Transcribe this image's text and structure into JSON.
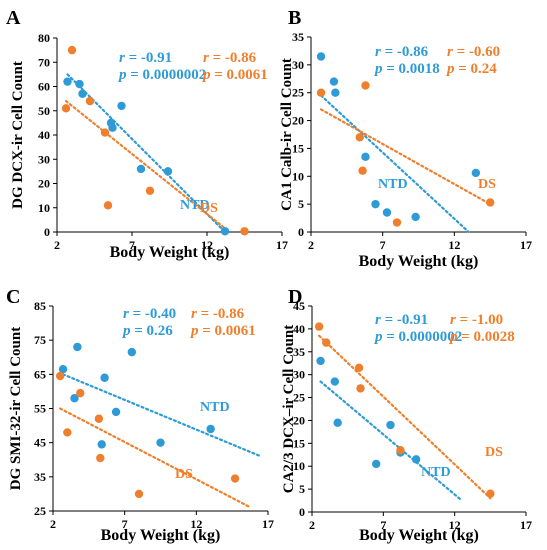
{
  "colors": {
    "ntd": "#2e9bd6",
    "ds": "#f07f2d",
    "axis": "#000000"
  },
  "chart_data": [
    {
      "panel": "A",
      "type": "scatter",
      "xlabel": "Body Weight (kg)",
      "ylabel": "DG DCX-ir Cell Count",
      "xlim": [
        2,
        17
      ],
      "ylim": [
        0,
        80
      ],
      "xticks": [
        2,
        7,
        12,
        17
      ],
      "yticks": [
        0,
        10,
        20,
        30,
        40,
        50,
        60,
        70,
        80
      ],
      "stats": {
        "ntd": {
          "r_label": "r",
          "r_value": " = -0.91",
          "p_label": "p",
          "p_value": " = 0.0000002"
        },
        "ds": {
          "r_label": "r",
          "r_value": " = -0.86",
          "p_label": "p",
          "p_value": " = 0.0061"
        }
      },
      "series": [
        {
          "name": "NTD",
          "color": "#2e9bd6",
          "points": [
            [
              2.7,
              62
            ],
            [
              3.5,
              61
            ],
            [
              3.7,
              57
            ],
            [
              4.2,
              54
            ],
            [
              5.6,
              45
            ],
            [
              5.7,
              43
            ],
            [
              6.3,
              52
            ],
            [
              7.6,
              26
            ],
            [
              9.4,
              25
            ],
            [
              13.2,
              0.3
            ]
          ],
          "trend": [
            [
              2.7,
              65
            ],
            [
              13.2,
              0
            ]
          ]
        },
        {
          "name": "DS",
          "color": "#f07f2d",
          "points": [
            [
              2.6,
              51
            ],
            [
              3.0,
              75
            ],
            [
              4.2,
              54
            ],
            [
              5.2,
              41
            ],
            [
              5.4,
              11
            ],
            [
              8.2,
              17
            ],
            [
              14.5,
              0.3
            ]
          ],
          "trend": [
            [
              2.6,
              54
            ],
            [
              13.5,
              0
            ]
          ]
        }
      ]
    },
    {
      "panel": "B",
      "type": "scatter",
      "xlabel": "Body Weight (kg)",
      "ylabel": "CA1 Calb-ir Cell Count",
      "xlim": [
        2,
        17
      ],
      "ylim": [
        0,
        35
      ],
      "xticks": [
        2,
        7,
        12,
        17
      ],
      "yticks": [
        0,
        5,
        10,
        15,
        20,
        25,
        30,
        35
      ],
      "stats": {
        "ntd": {
          "r_label": "r",
          "r_value": " = -0.86",
          "p_label": "p",
          "p_value": " = 0.0018"
        },
        "ds": {
          "r_label": "r",
          "r_value": " = -0.60",
          "p_label": "p",
          "p_value": " = 0.24"
        }
      },
      "series": [
        {
          "name": "NTD",
          "color": "#2e9bd6",
          "points": [
            [
              2.7,
              31.5
            ],
            [
              3.6,
              27
            ],
            [
              3.7,
              25
            ],
            [
              5.8,
              13.5
            ],
            [
              6.5,
              5
            ],
            [
              7.3,
              3.5
            ],
            [
              9.3,
              2.7
            ],
            [
              13.5,
              10.6
            ]
          ],
          "trend": [
            [
              2.7,
              24.5
            ],
            [
              13,
              0
            ]
          ]
        },
        {
          "name": "DS",
          "color": "#f07f2d",
          "points": [
            [
              2.7,
              25
            ],
            [
              5.4,
              17
            ],
            [
              5.6,
              11
            ],
            [
              5.8,
              26.3
            ],
            [
              8.0,
              1.7
            ],
            [
              14.5,
              5.3
            ]
          ],
          "trend": [
            [
              2.7,
              22
            ],
            [
              14.5,
              5
            ]
          ]
        }
      ]
    },
    {
      "panel": "C",
      "type": "scatter",
      "xlabel": "Body Weight (kg)",
      "ylabel": "DG SMI-32-ir Cell Count",
      "xlim": [
        2,
        17
      ],
      "ylim": [
        25,
        85
      ],
      "xticks": [
        2,
        7,
        12,
        17
      ],
      "yticks": [
        25,
        35,
        45,
        55,
        65,
        75,
        85
      ],
      "stats": {
        "ntd": {
          "r_label": "r",
          "r_value": " = -0.40",
          "p_label": "p",
          "p_value": " = 0.26"
        },
        "ds": {
          "r_label": "r",
          "r_value": " = -0.86",
          "p_label": "p",
          "p_value": " = 0.0061"
        }
      },
      "series": [
        {
          "name": "NTD",
          "color": "#2e9bd6",
          "points": [
            [
              2.7,
              66.5
            ],
            [
              3.5,
              58
            ],
            [
              3.7,
              73
            ],
            [
              5.4,
              44.5
            ],
            [
              5.6,
              64
            ],
            [
              6.4,
              54
            ],
            [
              7.5,
              71.5
            ],
            [
              9.5,
              45
            ],
            [
              13.0,
              49
            ]
          ],
          "trend": [
            [
              2.7,
              65
            ],
            [
              16.5,
              41
            ]
          ]
        },
        {
          "name": "DS",
          "color": "#f07f2d",
          "points": [
            [
              2.5,
              64.5
            ],
            [
              3.0,
              48
            ],
            [
              3.9,
              59.5
            ],
            [
              5.2,
              52
            ],
            [
              5.3,
              40.5
            ],
            [
              8.0,
              30
            ],
            [
              14.7,
              34.5
            ]
          ],
          "trend": [
            [
              2.5,
              55
            ],
            [
              15.8,
              26
            ]
          ]
        }
      ]
    },
    {
      "panel": "D",
      "type": "scatter",
      "xlabel": "Body Weight (kg)",
      "ylabel": "CA2/3 DCX–ir Cell Count",
      "xlim": [
        2,
        17
      ],
      "ylim": [
        0,
        45
      ],
      "xticks": [
        2,
        7,
        12,
        17
      ],
      "yticks": [
        0,
        5,
        10,
        15,
        20,
        25,
        30,
        35,
        40,
        45
      ],
      "stats": {
        "ntd": {
          "r_label": "r",
          "r_value": " = -0.91",
          "p_label": "p",
          "p_value": " = 0.0000002"
        },
        "ds": {
          "r_label": "r",
          "r_value": " = -1.00",
          "p_label": "p",
          "p_value": " = 0.0028"
        }
      },
      "series": [
        {
          "name": "NTD",
          "color": "#2e9bd6",
          "points": [
            [
              2.6,
              33
            ],
            [
              3.6,
              28.5
            ],
            [
              3.8,
              19.5
            ],
            [
              6.5,
              10.5
            ],
            [
              7.5,
              19
            ],
            [
              8.2,
              13
            ],
            [
              9.3,
              11.5
            ]
          ],
          "trend": [
            [
              2.6,
              28.5
            ],
            [
              12.5,
              2.5
            ]
          ]
        },
        {
          "name": "DS",
          "color": "#f07f2d",
          "points": [
            [
              2.5,
              40.5
            ],
            [
              3.0,
              37
            ],
            [
              5.3,
              31.5
            ],
            [
              5.4,
              27
            ],
            [
              8.2,
              13.5
            ],
            [
              14.5,
              4
            ]
          ],
          "trend": [
            [
              2.5,
              38.5
            ],
            [
              14.5,
              3
            ]
          ]
        }
      ]
    }
  ]
}
